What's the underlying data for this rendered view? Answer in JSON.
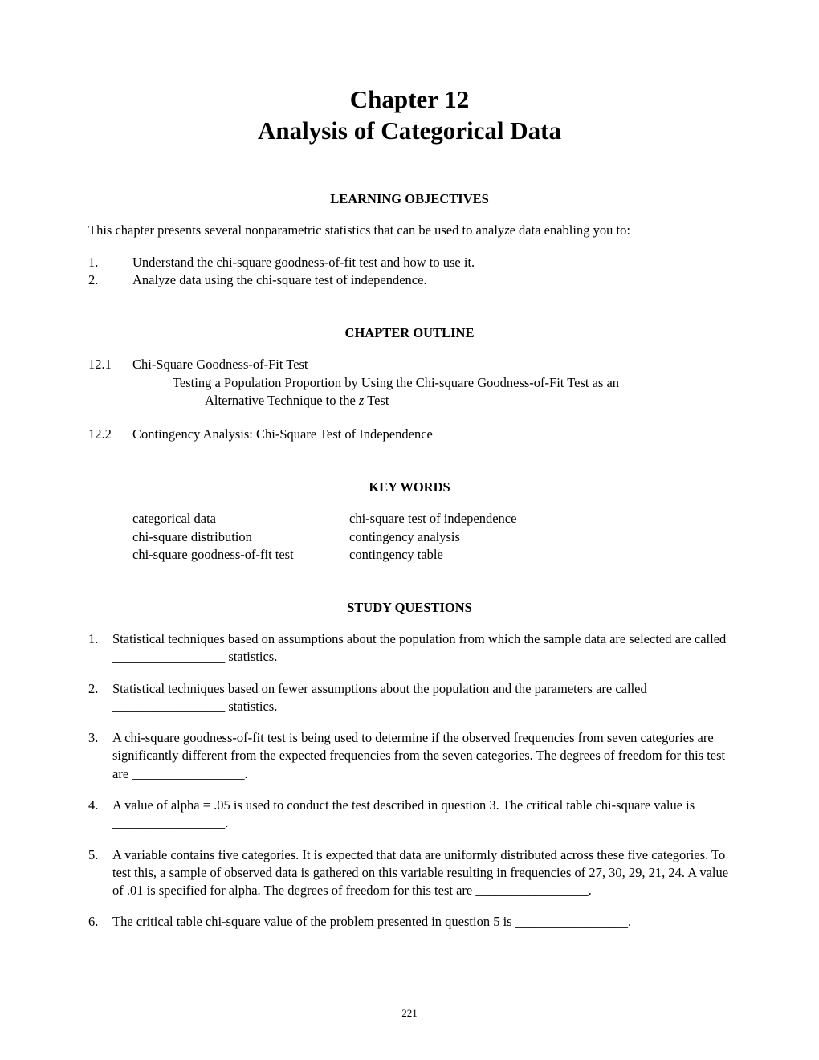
{
  "chapter": {
    "title_line1": "Chapter 12",
    "title_line2": "Analysis of Categorical Data"
  },
  "sections": {
    "learning_objectives": {
      "heading": "LEARNING OBJECTIVES",
      "intro": "This chapter presents several nonparametric statistics that can be used to analyze data enabling you to:",
      "items": [
        {
          "num": "1.",
          "text": "Understand the chi-square goodness-of-fit test and how to use it."
        },
        {
          "num": "2.",
          "text": "Analyze data using the chi-square test of independence."
        }
      ]
    },
    "chapter_outline": {
      "heading": "CHAPTER OUTLINE",
      "entries": [
        {
          "num": "12.1",
          "title": "Chi-Square Goodness-of-Fit Test",
          "sub1": "Testing a Population Proportion by Using the Chi-square Goodness-of-Fit Test as an",
          "sub2_prefix": "Alternative Technique to the ",
          "sub2_italic": "z",
          "sub2_suffix": " Test"
        },
        {
          "num": "12.2",
          "title": "Contingency Analysis: Chi-Square Test of Independence"
        }
      ]
    },
    "key_words": {
      "heading": "KEY WORDS",
      "left_col": [
        "categorical data",
        "chi-square distribution",
        "chi-square goodness-of-fit test"
      ],
      "right_col": [
        "chi-square test of independence",
        "contingency analysis",
        "contingency table"
      ]
    },
    "study_questions": {
      "heading": "STUDY QUESTIONS",
      "items": [
        {
          "num": "1.",
          "text": "Statistical techniques based on assumptions about the population from which the sample data are selected are called _________________ statistics."
        },
        {
          "num": "2.",
          "text": "Statistical techniques based on fewer assumptions about the population and the parameters are called _________________ statistics."
        },
        {
          "num": "3.",
          "text": "A chi-square goodness-of-fit test is being used to determine if the observed frequencies from seven categories are significantly different from the expected frequencies from the seven categories. The degrees of freedom for this test are _________________."
        },
        {
          "num": "4.",
          "text": "A value of alpha = .05 is used to conduct the test described in question 3. The critical table chi-square value is _________________."
        },
        {
          "num": "5.",
          "text": "A variable contains five categories. It is expected that data are uniformly distributed across these five categories. To test this, a sample of observed data is gathered on this variable resulting in frequencies of 27, 30, 29, 21, 24. A value of .01 is specified for alpha. The degrees of freedom for this test are _________________."
        },
        {
          "num": "6.",
          "text": "The critical table chi-square value of the problem presented in question 5 is _________________."
        }
      ]
    }
  },
  "page_number": "221"
}
